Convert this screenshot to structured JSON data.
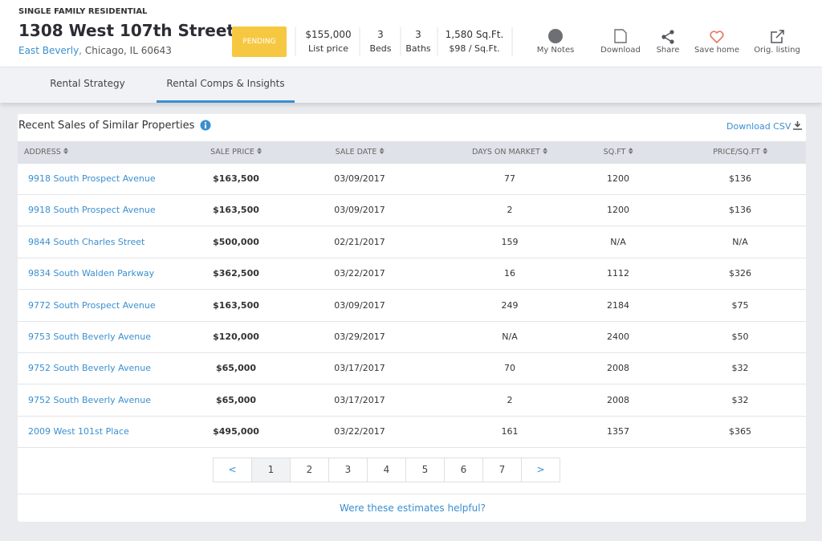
{
  "header": {
    "property_type": "SINGLE FAMILY RESIDENTIAL",
    "address": "1308 West 107th Street",
    "neighborhood": "East Beverly,",
    "city": "Chicago, IL 60643",
    "status": "PENDING",
    "stats": [
      {
        "value": "$155,000",
        "label": "List price"
      },
      {
        "value": "3",
        "label": "Beds"
      },
      {
        "value": "3",
        "label": "Baths"
      },
      {
        "value": "1,580 Sq.Ft.",
        "label": "$98 / Sq.Ft."
      }
    ],
    "actions": [
      "My Notes",
      "Download",
      "Share",
      "Save home",
      "Orig. listing"
    ]
  },
  "tabs": [
    "Rental Strategy",
    "Rental Comps & Insights"
  ],
  "section": {
    "title": "Recent Sales of Similar Properties",
    "download": "Download CSV"
  },
  "table": {
    "columns": [
      "ADDRESS",
      "SALE PRICE",
      "SALE DATE",
      "DAYS ON MARKET",
      "SQ.FT",
      "PRICE/SQ.FT"
    ],
    "rows": [
      [
        "9918 South Prospect Avenue",
        "$163,500",
        "03/09/2017",
        "77",
        "1200",
        "$136"
      ],
      [
        "9918 South Prospect Avenue",
        "$163,500",
        "03/09/2017",
        "2",
        "1200",
        "$136"
      ],
      [
        "9844 South Charles Street",
        "$500,000",
        "02/21/2017",
        "159",
        "N/A",
        "N/A"
      ],
      [
        "9834 South Walden Parkway",
        "$362,500",
        "03/22/2017",
        "16",
        "1112",
        "$326"
      ],
      [
        "9772 South Prospect Avenue",
        "$163,500",
        "03/09/2017",
        "249",
        "2184",
        "$75"
      ],
      [
        "9753 South Beverly Avenue",
        "$120,000",
        "03/29/2017",
        "N/A",
        "2400",
        "$50"
      ],
      [
        "9752 South Beverly Avenue",
        "$65,000",
        "03/17/2017",
        "70",
        "2008",
        "$32"
      ],
      [
        "9752 South Beverly Avenue",
        "$65,000",
        "03/17/2017",
        "2",
        "2008",
        "$32"
      ],
      [
        "2009 West 101st Place",
        "$495,000",
        "03/22/2017",
        "161",
        "1357",
        "$365"
      ]
    ]
  },
  "pagination": {
    "prev": "<",
    "pages": [
      1,
      2,
      3,
      4,
      5,
      6,
      7
    ],
    "next": ">"
  },
  "feedback": "Were these estimates helpful?"
}
